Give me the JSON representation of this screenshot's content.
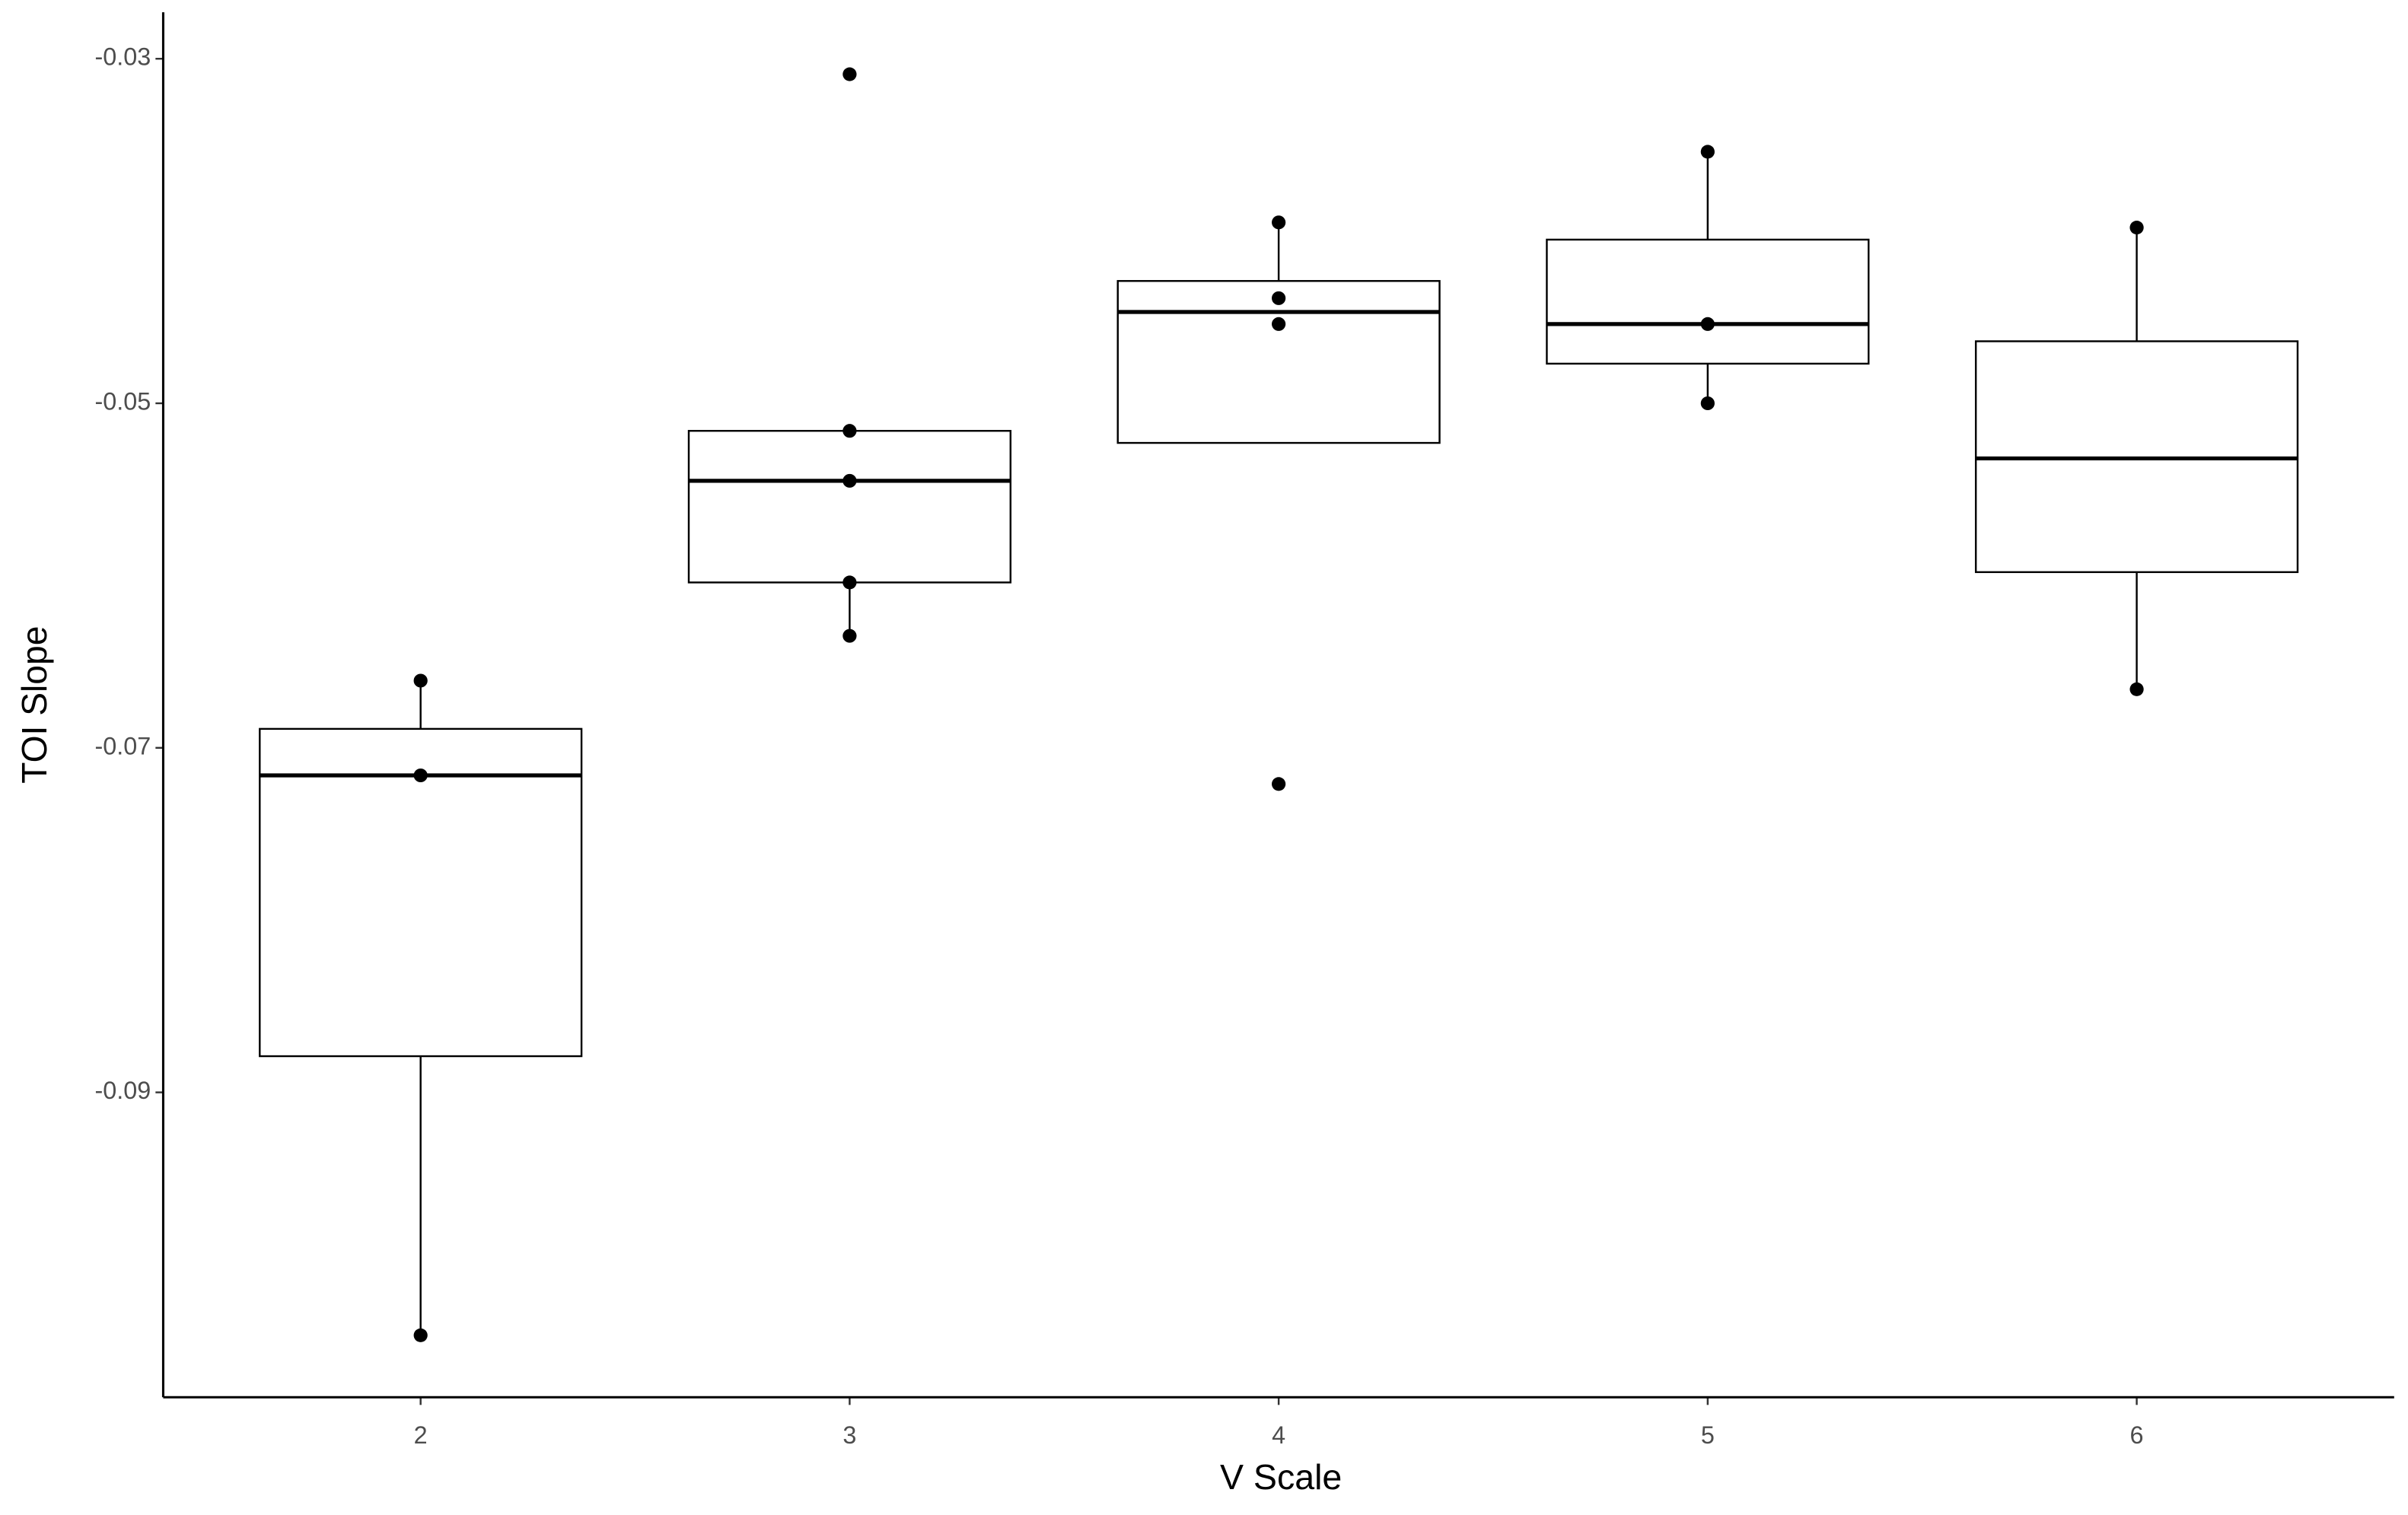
{
  "chart_data": {
    "type": "box",
    "x_label": "V Scale",
    "y_label": "TOI Slope",
    "categories": [
      "2",
      "3",
      "4",
      "5",
      "6"
    ],
    "boxes": [
      {
        "whisker_low": -0.1041,
        "q1": -0.0879,
        "median": -0.0716,
        "q3": -0.0689,
        "whisker_high": -0.0661,
        "points": [
          -0.0661,
          -0.0716,
          -0.1041
        ]
      },
      {
        "whisker_low": -0.0635,
        "q1": -0.0604,
        "median": -0.0545,
        "q3": -0.0516,
        "whisker_high": -0.0516,
        "points": [
          -0.0309,
          -0.0516,
          -0.0545,
          -0.0604,
          -0.0635
        ]
      },
      {
        "whisker_low": -0.0523,
        "q1": -0.0523,
        "median": -0.0447,
        "q3": -0.0429,
        "whisker_high": -0.0395,
        "points": [
          -0.0395,
          -0.0439,
          -0.0454,
          -0.0721
        ]
      },
      {
        "whisker_low": -0.05,
        "q1": -0.0477,
        "median": -0.0454,
        "q3": -0.0405,
        "whisker_high": -0.0354,
        "points": [
          -0.0354,
          -0.0454,
          -0.05
        ]
      },
      {
        "whisker_low": -0.0666,
        "q1": -0.0598,
        "median": -0.0532,
        "q3": -0.0464,
        "whisker_high": -0.0398,
        "points": [
          -0.0398,
          -0.0666
        ]
      }
    ],
    "color": "#000000",
    "ylim": [
      -0.1077,
      -0.0273
    ],
    "yticks": [
      -0.09,
      -0.07,
      -0.05,
      -0.03
    ],
    "grid": false
  }
}
